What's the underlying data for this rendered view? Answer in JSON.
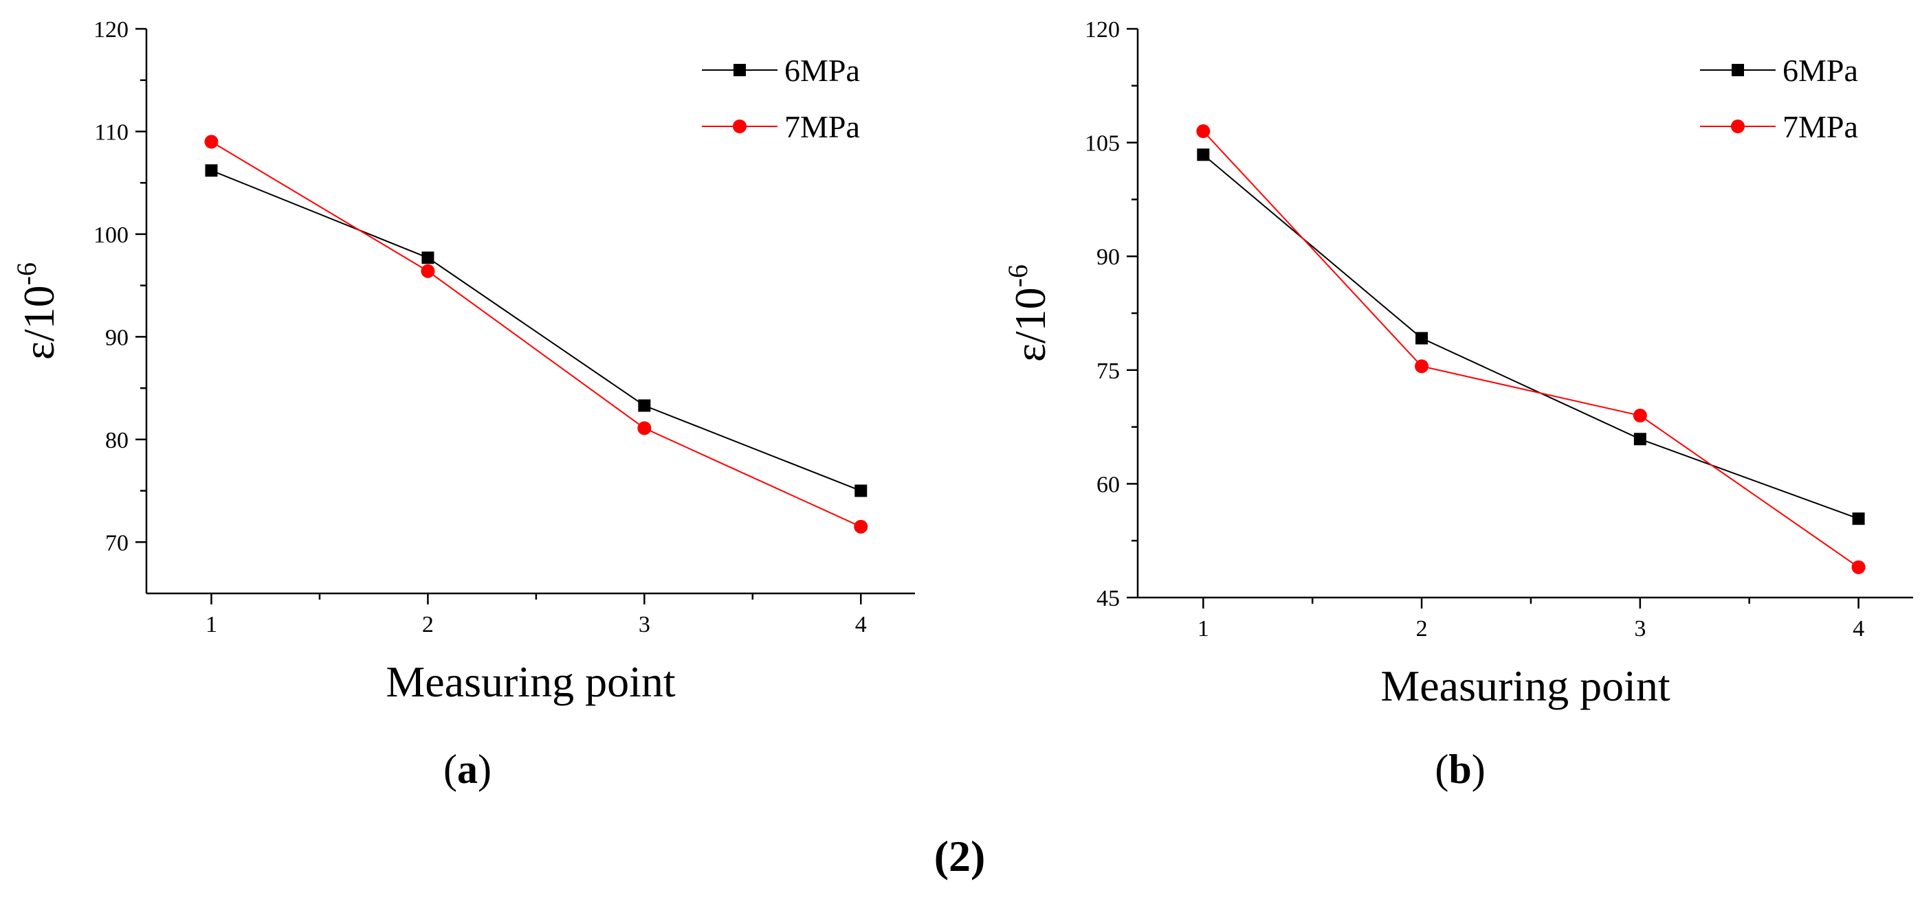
{
  "figure_label": "(2)",
  "chart_data": [
    {
      "type": "line",
      "panel": "a",
      "panel_label_open": "(",
      "panel_label_letter": "a",
      "panel_label_close": ")",
      "xlabel": "Measuring point",
      "ylabel_base": "ε/10",
      "ylabel_sup": "-6",
      "x": [
        1,
        2,
        3,
        4
      ],
      "x_tick_labels": [
        "1",
        "2",
        "3",
        "4"
      ],
      "xlim": [
        0.7,
        4.25
      ],
      "ylim": [
        65,
        120
      ],
      "yticks": [
        70,
        80,
        90,
        100,
        110,
        120
      ],
      "y_tick_labels": [
        "70",
        "80",
        "90",
        "100",
        "110",
        "120"
      ],
      "legend_position": "top-right",
      "series": [
        {
          "name": "6MPa",
          "marker": "square",
          "color": "#000000",
          "values": [
            106.2,
            97.7,
            83.3,
            75.0
          ]
        },
        {
          "name": "7MPa",
          "marker": "circle",
          "color": "#ff0000",
          "values": [
            109.0,
            96.4,
            81.1,
            71.5
          ]
        }
      ]
    },
    {
      "type": "line",
      "panel": "b",
      "panel_label_open": "(",
      "panel_label_letter": "b",
      "panel_label_close": ")",
      "xlabel": "Measuring point",
      "ylabel_base": "ε/10",
      "ylabel_sup": "-6",
      "x": [
        1,
        2,
        3,
        4
      ],
      "x_tick_labels": [
        "1",
        "2",
        "3",
        "4"
      ],
      "xlim": [
        0.7,
        4.25
      ],
      "ylim": [
        45,
        120
      ],
      "yticks": [
        45,
        60,
        75,
        90,
        105,
        120
      ],
      "y_tick_labels": [
        "45",
        "60",
        "75",
        "90",
        "105",
        "120"
      ],
      "legend_position": "top-right",
      "series": [
        {
          "name": "6MPa",
          "marker": "square",
          "color": "#000000",
          "values": [
            103.4,
            79.2,
            65.9,
            55.4
          ]
        },
        {
          "name": "7MPa",
          "marker": "circle",
          "color": "#ff0000",
          "values": [
            106.5,
            75.5,
            69.0,
            49.0
          ]
        }
      ]
    }
  ]
}
